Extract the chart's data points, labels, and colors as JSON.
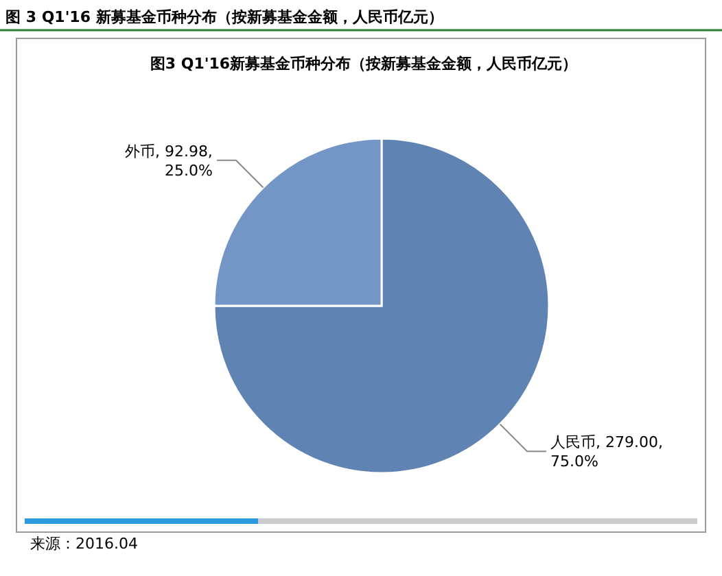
{
  "chart_data": {
    "type": "pie",
    "title": "图 3 Q1'16 新募基金币种分布（按新募基金金额，人民币亿元）",
    "subtitle": "图3 Q1'16新募基金币种分布（按新募基金金额，人民币亿元）",
    "categories": [
      "人民币",
      "外币"
    ],
    "values": [
      279.0,
      92.98
    ],
    "value_labels": [
      "279.00,\n75.0%",
      "92.98,\n25.0%"
    ],
    "colors": [
      "#5f83b3",
      "#7396c6"
    ],
    "annotations": [
      "来源：2016.04"
    ]
  }
}
